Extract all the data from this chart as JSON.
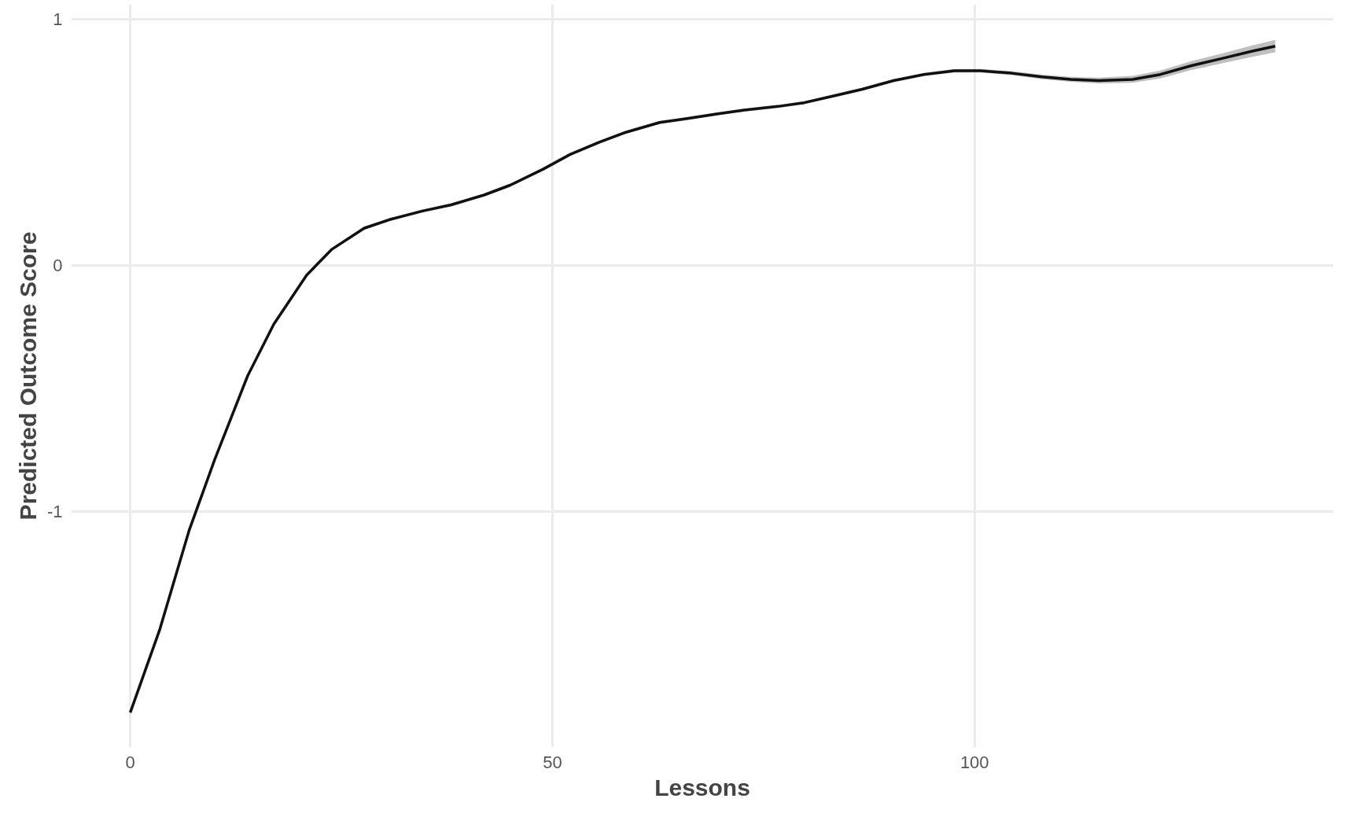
{
  "chart_data": {
    "type": "line",
    "xlabel": "Lessons",
    "ylabel": "Predicted Outcome Score",
    "xlim": [
      -7,
      142.5
    ],
    "ylim": [
      -1.96,
      1.06
    ],
    "xticks": [
      0,
      50,
      100
    ],
    "yticks": [
      -1,
      0,
      1
    ],
    "grid": true,
    "marker": "none",
    "line_style": "solid",
    "series": [
      {
        "color": "#111111",
        "x": [
          0,
          3.5,
          6.95,
          10,
          13.9,
          17,
          20.9,
          23.9,
          27.7,
          30.7,
          34.6,
          38,
          41.9,
          45,
          48.9,
          52.1,
          55.6,
          58.7,
          62.7,
          65.8,
          69.6,
          72.7,
          76.7,
          79.8,
          83.6,
          86.7,
          90.4,
          94,
          97.6,
          100.7,
          104.4,
          108,
          111.4,
          114.7,
          118.7,
          122,
          125.6,
          129.3,
          132.9,
          135.6
        ],
        "values": [
          -1.818,
          -1.48,
          -1.08,
          -0.79,
          -0.45,
          -0.24,
          -0.04,
          0.065,
          0.15,
          0.185,
          0.22,
          0.245,
          0.285,
          0.325,
          0.39,
          0.45,
          0.5,
          0.54,
          0.58,
          0.595,
          0.615,
          0.63,
          0.645,
          0.66,
          0.69,
          0.715,
          0.75,
          0.775,
          0.79,
          0.79,
          0.78,
          0.765,
          0.755,
          0.75,
          0.755,
          0.775,
          0.81,
          0.84,
          0.87,
          0.89
        ],
        "lower": [
          -1.828,
          -1.488,
          -1.087,
          -0.797,
          -0.456,
          -0.246,
          -0.046,
          0.059,
          0.144,
          0.179,
          0.214,
          0.239,
          0.279,
          0.319,
          0.384,
          0.444,
          0.494,
          0.534,
          0.574,
          0.589,
          0.609,
          0.624,
          0.639,
          0.654,
          0.684,
          0.709,
          0.744,
          0.769,
          0.783,
          0.783,
          0.772,
          0.756,
          0.745,
          0.738,
          0.741,
          0.759,
          0.792,
          0.82,
          0.847,
          0.865
        ],
        "upper": [
          -1.808,
          -1.472,
          -1.073,
          -0.783,
          -0.444,
          -0.234,
          -0.034,
          0.071,
          0.156,
          0.191,
          0.226,
          0.251,
          0.291,
          0.331,
          0.396,
          0.456,
          0.506,
          0.546,
          0.586,
          0.601,
          0.621,
          0.636,
          0.651,
          0.666,
          0.696,
          0.721,
          0.756,
          0.781,
          0.797,
          0.797,
          0.788,
          0.774,
          0.765,
          0.762,
          0.769,
          0.791,
          0.828,
          0.86,
          0.893,
          0.915
        ]
      }
    ]
  }
}
